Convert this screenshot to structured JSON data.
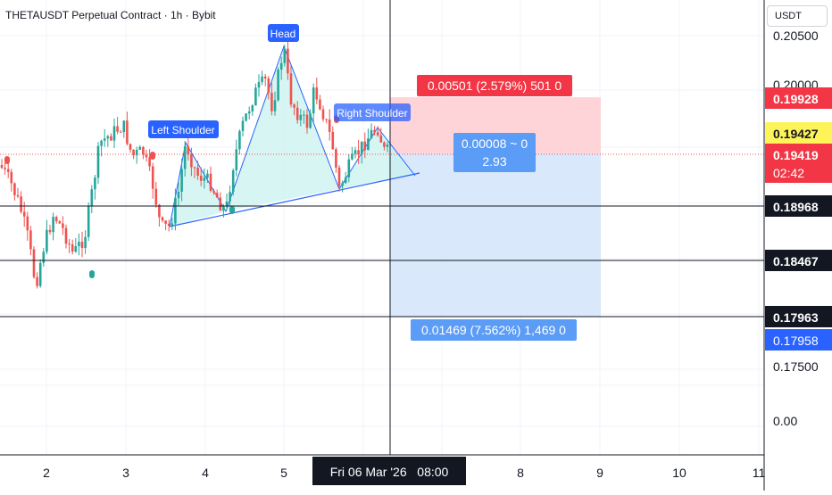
{
  "header": {
    "title": "THETAUSDT Perpetual Contract · 1h · Bybit",
    "currency": "USDT"
  },
  "colors": {
    "up": "#26a69a",
    "down": "#ef5350",
    "pattern_fill": "#c9f2ef",
    "pattern_line": "#2962ff",
    "target_fill": "#ffcdd2",
    "stop_fill": "#d6e6fb"
  },
  "chart_data": {
    "type": "candlestick",
    "title": "THETAUSDT Perpetual Contract · 1h · Bybit",
    "price_axis": {
      "ticks": [
        "0.20500",
        "0.20000",
        "0.17500",
        "0.00"
      ],
      "highlighted_levels": [
        {
          "value": "0.19928",
          "style": "red"
        },
        {
          "value": "0.19427",
          "style": "yellow"
        },
        {
          "value": "0.19419",
          "style": "red",
          "countdown": "02:42"
        },
        {
          "value": "0.18968",
          "style": "black"
        },
        {
          "value": "0.18467",
          "style": "black"
        },
        {
          "value": "0.17963",
          "style": "black"
        },
        {
          "value": "0.17958",
          "style": "blue"
        }
      ]
    },
    "time_axis": {
      "ticks": [
        "2",
        "3",
        "4",
        "5",
        "8",
        "9",
        "10",
        "11"
      ],
      "crosshair_label": "Fri 06 Mar '26   08:00"
    },
    "pattern": {
      "name": "Head and Shoulders",
      "labels": [
        "Left Shoulder",
        "Head",
        "Right Shoulder"
      ]
    },
    "position_tool": {
      "target_label": "0.00501 (2.579%) 501 0",
      "entry_label_1": "0.00008 ~ 0",
      "entry_label_2": "2.93",
      "stop_label": "0.01469 (7.562%) 1,469 0"
    },
    "horizontal_lines": [
      0.18968,
      0.18467,
      0.17963
    ],
    "last_price": 0.19419
  }
}
